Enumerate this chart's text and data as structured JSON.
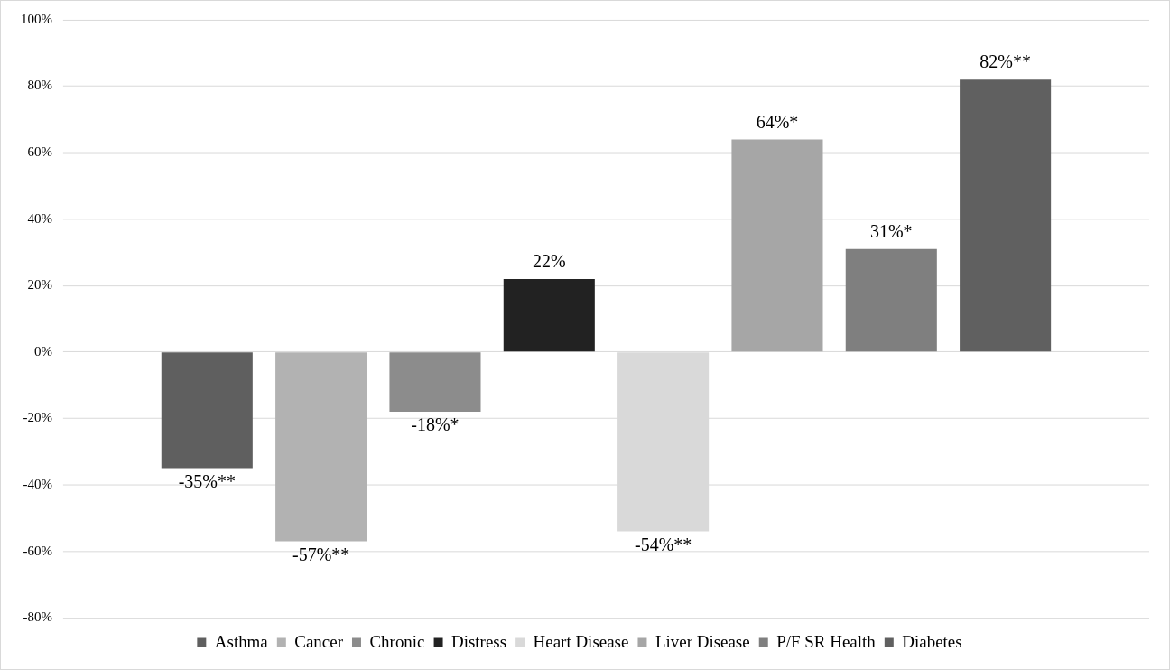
{
  "chart_data": {
    "type": "bar",
    "categories": [
      null
    ],
    "series": [
      {
        "name": "Asthma",
        "color": "#5f5f5f",
        "values": [
          -35
        ],
        "value_labels": [
          "-35%**"
        ]
      },
      {
        "name": "Cancer",
        "color": "#b2b2b2",
        "values": [
          -57
        ],
        "value_labels": [
          "-57%**"
        ]
      },
      {
        "name": "Chronic",
        "color": "#8c8c8c",
        "values": [
          -18
        ],
        "value_labels": [
          "-18%*"
        ]
      },
      {
        "name": "Distress",
        "color": "#222222",
        "values": [
          22
        ],
        "value_labels": [
          "22%"
        ]
      },
      {
        "name": "Heart Disease",
        "color": "#d9d9d9",
        "values": [
          -54
        ],
        "value_labels": [
          "-54%**"
        ]
      },
      {
        "name": "Liver Disease",
        "color": "#a6a6a6",
        "values": [
          64
        ],
        "value_labels": [
          "64%*"
        ]
      },
      {
        "name": "P/F SR Health",
        "color": "#7f7f7f",
        "values": [
          31
        ],
        "value_labels": [
          "31%*"
        ]
      },
      {
        "name": "Diabetes",
        "color": "#606060",
        "values": [
          82
        ],
        "value_labels": [
          "82%**"
        ]
      }
    ],
    "ylim": [
      -80,
      100
    ],
    "yticks": [
      {
        "value": -80,
        "label": "-80%"
      },
      {
        "value": -60,
        "label": "-60%"
      },
      {
        "value": -40,
        "label": "-40%"
      },
      {
        "value": -20,
        "label": "-20%"
      },
      {
        "value": 0,
        "label": "0%"
      },
      {
        "value": 20,
        "label": "20%"
      },
      {
        "value": 40,
        "label": "40%"
      },
      {
        "value": 60,
        "label": "60%"
      },
      {
        "value": 80,
        "label": "80%"
      },
      {
        "value": 100,
        "label": "100%"
      }
    ],
    "grid": "y",
    "legend": "bottom"
  }
}
